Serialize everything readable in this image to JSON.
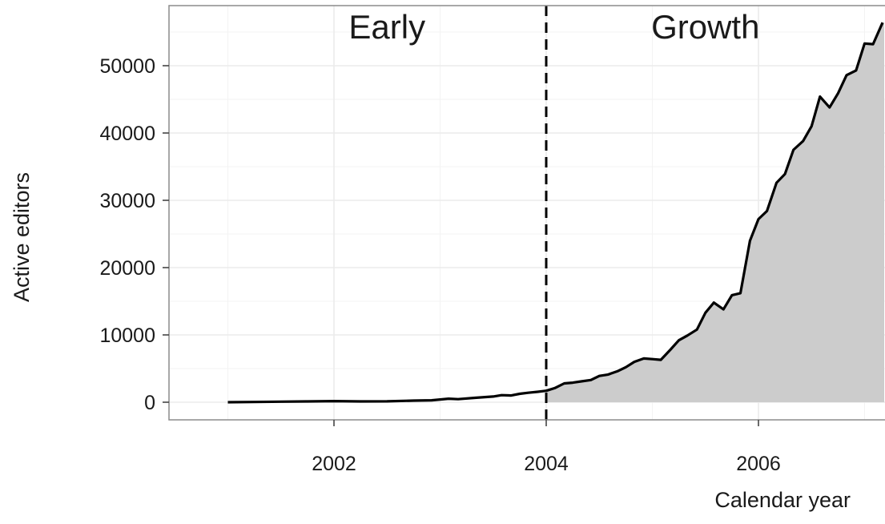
{
  "chart_data": {
    "type": "area",
    "xlabel": "Calendar year",
    "ylabel": "Active editors",
    "xlim": [
      2000.5,
      2007.2
    ],
    "ylim": [
      -2700,
      59000
    ],
    "x_ticks": [
      2002,
      2004,
      2006
    ],
    "x_tick_labels": [
      "2002",
      "2004",
      "2006"
    ],
    "y_ticks": [
      0,
      10000,
      20000,
      30000,
      40000,
      50000
    ],
    "y_tick_labels": [
      "0",
      "10000",
      "20000",
      "30000",
      "40000",
      "50000"
    ],
    "grid": true,
    "fill_start_x": 2004.0,
    "divider_x": 2004.0,
    "phases": [
      {
        "label": "Early",
        "x": 2002.5
      },
      {
        "label": "Growth",
        "x": 2005.5
      }
    ],
    "colors": {
      "line": "#000000",
      "fill": "#cccccc",
      "grid": "#ebebeb",
      "border": "#8c8c8c"
    },
    "series": [
      {
        "x": [
          2001.0,
          2001.25,
          2001.5,
          2001.75,
          2002.0,
          2002.25,
          2002.5,
          2002.75,
          2002.92,
          2003.0,
          2003.08,
          2003.17,
          2003.33,
          2003.5,
          2003.58,
          2003.67,
          2003.75,
          2003.83,
          2003.92,
          2004.0,
          2004.08,
          2004.17,
          2004.25,
          2004.33,
          2004.42,
          2004.5,
          2004.58,
          2004.67,
          2004.75,
          2004.83,
          2004.92,
          2005.0,
          2005.08,
          2005.17,
          2005.25,
          2005.33,
          2005.42,
          2005.5,
          2005.58,
          2005.67,
          2005.75,
          2005.83,
          2005.92,
          2006.0,
          2006.08,
          2006.17,
          2006.25,
          2006.33,
          2006.42,
          2006.5,
          2006.58,
          2006.67,
          2006.75,
          2006.83,
          2006.92,
          2007.0,
          2007.08,
          2007.17
        ],
        "values": [
          0,
          30,
          80,
          120,
          170,
          120,
          130,
          240,
          280,
          400,
          520,
          450,
          650,
          850,
          1050,
          1000,
          1250,
          1400,
          1550,
          1700,
          2100,
          2800,
          2900,
          3100,
          3300,
          3900,
          4100,
          4600,
          5200,
          6000,
          6500,
          6400,
          6300,
          7800,
          9200,
          9900,
          10800,
          13300,
          14800,
          13800,
          15900,
          16200,
          24000,
          27200,
          28400,
          32600,
          33900,
          37500,
          38800,
          41000,
          45400,
          43800,
          45900,
          48600,
          49300,
          53300,
          53200,
          56400
        ]
      }
    ]
  }
}
